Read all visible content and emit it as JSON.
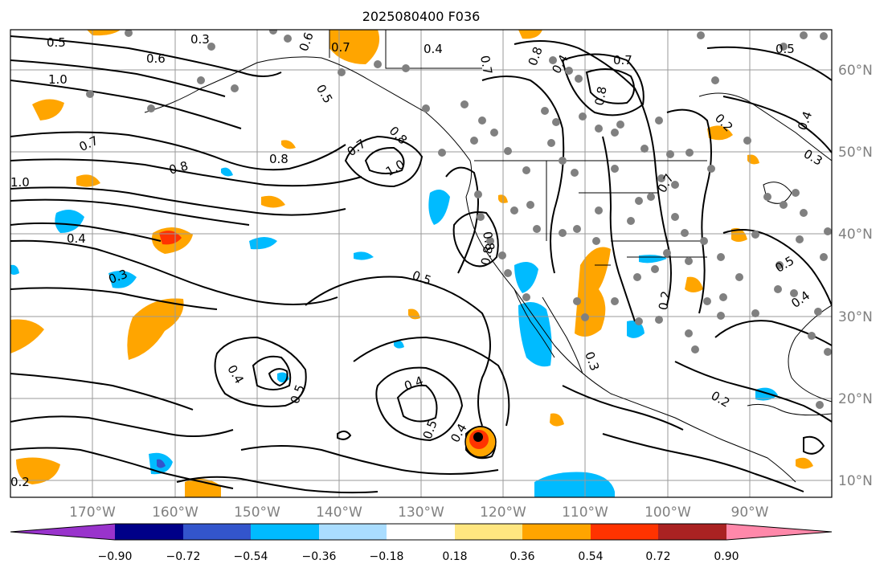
{
  "title": "2025080400 F036",
  "lon_ticks": [
    "170°W",
    "160°W",
    "150°W",
    "140°W",
    "130°W",
    "120°W",
    "110°W",
    "100°W",
    "90°W"
  ],
  "lat_ticks": [
    "60°N",
    "50°N",
    "40°N",
    "30°N",
    "20°N",
    "10°N"
  ],
  "colorbar": {
    "ticks": [
      "−0.90",
      "−0.72",
      "−0.54",
      "−0.36",
      "−0.18",
      "0.18",
      "0.36",
      "0.54",
      "0.72",
      "0.90"
    ],
    "colors": [
      "#9933cc",
      "#000088",
      "#3355cc",
      "#00bbff",
      "#aaddff",
      "#ffffff",
      "#ffe680",
      "#ffa500",
      "#ff3300",
      "#aa2222",
      "#ff88aa"
    ]
  },
  "contour_labels": [
    "0.5",
    "0.3",
    "0.6",
    "0.7",
    "0.4",
    "0.7",
    "0.8",
    "0.4",
    "0.7",
    "0.5",
    "0.6",
    "1.0",
    "0.5",
    "0.7",
    "0.8",
    "0.8",
    "0.7",
    "1.0",
    "0.8",
    "1.0",
    "0.8",
    "0.4",
    "0.3",
    "0.5",
    "0.4",
    "0.5",
    "0.4",
    "0.5",
    "0.4",
    "0.8",
    "0.8",
    "0.3",
    "0.2",
    "0.2",
    "0.5",
    "0.4",
    "0.3",
    "0.2",
    "0.4",
    "0.7",
    "0.2"
  ]
}
